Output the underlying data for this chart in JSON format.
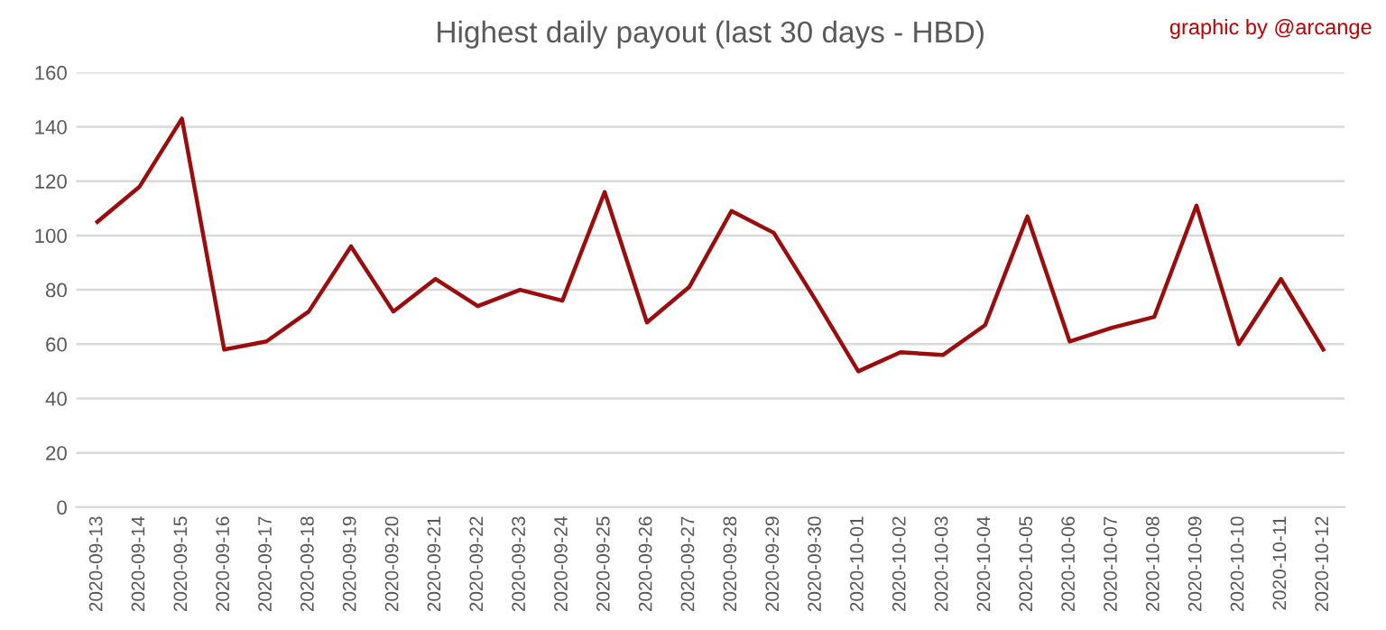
{
  "chart_data": {
    "type": "line",
    "title": "Highest daily payout (last 30 days - HBD)",
    "annotations": [
      "graphic by @arcange"
    ],
    "categories": [
      "2020-09-13",
      "2020-09-14",
      "2020-09-15",
      "2020-09-16",
      "2020-09-17",
      "2020-09-18",
      "2020-09-19",
      "2020-09-20",
      "2020-09-21",
      "2020-09-22",
      "2020-09-23",
      "2020-09-24",
      "2020-09-25",
      "2020-09-26",
      "2020-09-27",
      "2020-09-28",
      "2020-09-29",
      "2020-09-30",
      "2020-10-01",
      "2020-10-02",
      "2020-10-03",
      "2020-10-04",
      "2020-10-05",
      "2020-10-06",
      "2020-10-07",
      "2020-10-08",
      "2020-10-09",
      "2020-10-10",
      "2020-10-11",
      "2020-10-12"
    ],
    "series": [
      {
        "color": "#9b0d0d",
        "values": [
          105,
          118,
          143,
          58,
          61,
          72,
          96,
          72,
          84,
          74,
          80,
          76,
          116,
          68,
          81,
          109,
          101,
          76,
          50,
          57,
          56,
          67,
          107,
          61,
          66,
          70,
          111,
          60,
          84,
          58
        ]
      }
    ],
    "ylim": [
      0,
      160
    ],
    "yticks": [
      0,
      20,
      40,
      60,
      80,
      100,
      120,
      140,
      160
    ],
    "grid": "y",
    "marker": "none",
    "line_style": "solid"
  }
}
